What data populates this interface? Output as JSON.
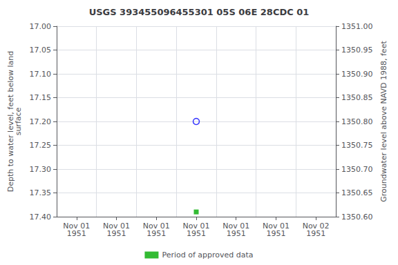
{
  "chart_data": {
    "type": "scatter",
    "title": "USGS 393455096455301 05S 06E 28CDC 01",
    "categories": [
      "Nov 01\n1951",
      "Nov 01\n1951",
      "Nov 01\n1951",
      "Nov 01\n1951",
      "Nov 01\n1951",
      "Nov 01\n1951",
      "Nov 02\n1951"
    ],
    "ylabel": "Depth to water level, feet below land\nsurface",
    "y2label": "Groundwater level above NAVD 1988, feet",
    "ylim": [
      17.4,
      17.0
    ],
    "yticks": [
      {
        "value": 17.0,
        "label": "17.00"
      },
      17.05,
      {
        "value": 17.1,
        "label": "17.10"
      },
      17.15,
      {
        "value": 17.2,
        "label": "17.20"
      },
      17.25,
      {
        "value": 17.3,
        "label": "17.30"
      },
      17.35,
      {
        "value": 17.4,
        "label": "17.40"
      }
    ],
    "y2lim": [
      1350.6,
      1351.0
    ],
    "y2ticks": [
      {
        "value": 1351.0,
        "label": "1351.00"
      },
      1350.95,
      {
        "value": 1350.9,
        "label": "1350.90"
      },
      1350.85,
      {
        "value": 1350.8,
        "label": "1350.80"
      },
      1350.75,
      {
        "value": 1350.7,
        "label": "1350.70"
      },
      1350.65,
      {
        "value": 1350.6,
        "label": "1350.60"
      }
    ],
    "series": [
      {
        "color": "#0000ff",
        "marker": "open_circle",
        "values": [
          null,
          null,
          null,
          17.2,
          null,
          null,
          null
        ]
      },
      {
        "name": "Period of approved data",
        "color": "#00aa00",
        "marker": "square",
        "values": [
          null,
          null,
          null,
          17.39,
          null,
          null,
          null
        ]
      }
    ],
    "grid": true,
    "legend": "bottom"
  }
}
